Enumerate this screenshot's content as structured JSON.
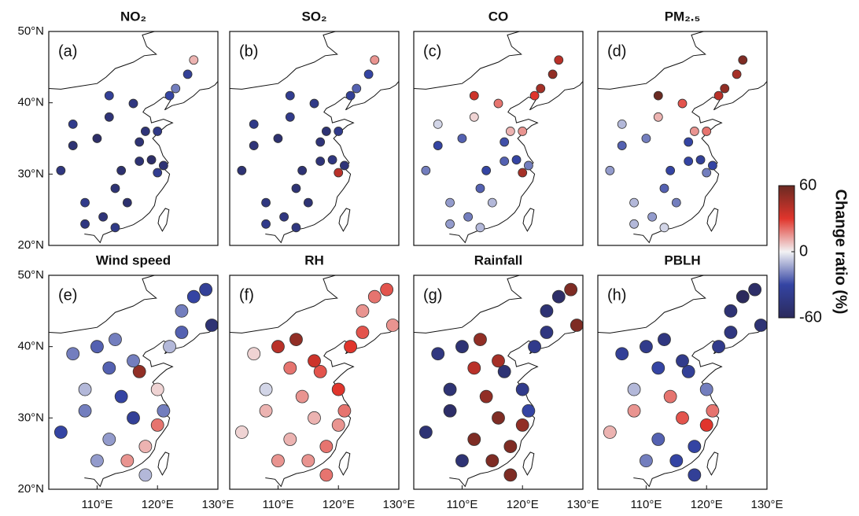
{
  "chart_data": [
    {
      "type": "map-scatter",
      "title": "NO₂",
      "panel": "(a)",
      "xlim": [
        102,
        130
      ],
      "ylim": [
        20,
        50
      ],
      "yticks": [
        {
          "value": 20,
          "label": "20°N"
        },
        {
          "value": 30,
          "label": "30°N"
        },
        {
          "value": 40,
          "label": "40°N"
        },
        {
          "value": 50,
          "label": "50°N"
        }
      ],
      "x": [
        104,
        106,
        108,
        110,
        112,
        113,
        114,
        116,
        117,
        118,
        119,
        120,
        121,
        122,
        123,
        125,
        126,
        113,
        108,
        111,
        115,
        117,
        120,
        106,
        112
      ],
      "y": [
        30.5,
        34,
        26,
        35,
        38,
        22.5,
        30.5,
        39.9,
        31.8,
        36,
        32,
        30.2,
        31.2,
        41,
        42,
        44,
        46,
        28,
        23,
        24,
        26,
        34.5,
        36,
        37,
        41
      ],
      "values": [
        -45,
        -50,
        -40,
        -55,
        -48,
        -42,
        -52,
        -45,
        -50,
        -48,
        -55,
        -38,
        -50,
        -30,
        -20,
        -35,
        10,
        -50,
        -45,
        -48,
        -52,
        -50,
        -42,
        -40,
        -35
      ]
    },
    {
      "type": "map-scatter",
      "title": "SO₂",
      "panel": "(b)",
      "xlim": [
        102,
        130
      ],
      "ylim": [
        20,
        50
      ],
      "x": [
        104,
        106,
        108,
        110,
        112,
        113,
        114,
        116,
        117,
        118,
        119,
        120,
        121,
        122,
        123,
        125,
        126,
        113,
        108,
        111,
        115,
        117,
        120,
        106,
        112
      ],
      "y": [
        30.5,
        34,
        26,
        35,
        38,
        22.5,
        30.5,
        39.9,
        31.8,
        36,
        32,
        30.2,
        31.2,
        41,
        42,
        44,
        46,
        28,
        23,
        24,
        26,
        34.5,
        36,
        37,
        41
      ],
      "values": [
        -50,
        -48,
        -45,
        -52,
        -40,
        -45,
        -50,
        -42,
        -48,
        -50,
        -45,
        40,
        -48,
        -35,
        -25,
        -30,
        15,
        -50,
        -40,
        -45,
        -50,
        -48,
        -40,
        -42,
        -38
      ]
    },
    {
      "type": "map-scatter",
      "title": "CO",
      "panel": "(c)",
      "xlim": [
        102,
        130
      ],
      "ylim": [
        20,
        50
      ],
      "x": [
        104,
        106,
        108,
        110,
        112,
        113,
        114,
        116,
        117,
        118,
        119,
        120,
        121,
        122,
        123,
        125,
        126,
        113,
        108,
        111,
        115,
        117,
        120,
        106,
        112
      ],
      "y": [
        30.5,
        34,
        26,
        35,
        38,
        22.5,
        30.5,
        39.9,
        31.8,
        36,
        32,
        30.2,
        31.2,
        41,
        42,
        44,
        46,
        28,
        23,
        24,
        26,
        34.5,
        36,
        37,
        41
      ],
      "values": [
        -20,
        -30,
        -15,
        -25,
        5,
        -10,
        -30,
        20,
        -25,
        10,
        -30,
        45,
        -20,
        30,
        45,
        50,
        40,
        -25,
        -15,
        -20,
        -10,
        -28,
        15,
        -5,
        35
      ]
    },
    {
      "type": "map-scatter",
      "title": "PM₂.₅",
      "panel": "(d)",
      "xlim": [
        102,
        130
      ],
      "ylim": [
        20,
        50
      ],
      "x": [
        104,
        106,
        108,
        110,
        112,
        113,
        114,
        116,
        117,
        118,
        119,
        120,
        121,
        122,
        123,
        125,
        126,
        113,
        108,
        111,
        115,
        117,
        120,
        106,
        112
      ],
      "y": [
        30.5,
        34,
        26,
        35,
        38,
        22.5,
        30.5,
        39.9,
        31.8,
        36,
        32,
        30.2,
        31.2,
        41,
        42,
        44,
        46,
        28,
        23,
        24,
        26,
        34.5,
        36,
        37,
        41
      ],
      "values": [
        -15,
        -25,
        -10,
        -20,
        10,
        -5,
        -30,
        25,
        -30,
        15,
        -35,
        -20,
        -30,
        40,
        50,
        45,
        55,
        -25,
        -10,
        -15,
        -20,
        -30,
        20,
        -10,
        60
      ]
    },
    {
      "type": "map-scatter",
      "title": "Wind speed",
      "panel": "(e)",
      "xlim": [
        102,
        130
      ],
      "ylim": [
        20,
        50
      ],
      "yticks": [
        {
          "value": 20,
          "label": "20°N"
        },
        {
          "value": 30,
          "label": "30°N"
        },
        {
          "value": 40,
          "label": "40°N"
        },
        {
          "value": 50,
          "label": "50°N"
        }
      ],
      "xticks": [
        {
          "value": 110,
          "label": "110°E"
        },
        {
          "value": 120,
          "label": "120°E"
        },
        {
          "value": 130,
          "label": "130°E"
        }
      ],
      "x": [
        104,
        108,
        110,
        112,
        114,
        116,
        117,
        118,
        120,
        121,
        122,
        124,
        126,
        128,
        129,
        106,
        110,
        113,
        115,
        118,
        120,
        112,
        116,
        108,
        124
      ],
      "y": [
        28,
        31,
        24,
        37,
        33,
        30,
        36.5,
        26,
        29,
        31,
        40,
        42,
        47,
        48,
        43,
        39,
        40,
        41,
        24,
        22,
        34,
        27,
        38,
        34,
        45
      ],
      "values": [
        -30,
        -20,
        -15,
        -25,
        -30,
        -35,
        50,
        10,
        20,
        -20,
        -10,
        -25,
        -30,
        -35,
        -50,
        -20,
        -25,
        -20,
        15,
        -10,
        5,
        -15,
        -20,
        -10,
        -20
      ]
    },
    {
      "type": "map-scatter",
      "title": "RH",
      "panel": "(f)",
      "xlim": [
        102,
        130
      ],
      "ylim": [
        20,
        50
      ],
      "xticks": [
        {
          "value": 110,
          "label": "110°E"
        },
        {
          "value": 120,
          "label": "120°E"
        },
        {
          "value": 130,
          "label": "130°E"
        }
      ],
      "x": [
        104,
        108,
        110,
        112,
        114,
        116,
        117,
        118,
        120,
        121,
        122,
        124,
        126,
        128,
        129,
        106,
        110,
        113,
        115,
        118,
        120,
        112,
        116,
        108,
        124
      ],
      "y": [
        28,
        31,
        24,
        37,
        33,
        30,
        36.5,
        26,
        29,
        31,
        40,
        42,
        47,
        48,
        43,
        39,
        40,
        41,
        24,
        22,
        34,
        27,
        38,
        34,
        45
      ],
      "values": [
        5,
        10,
        15,
        20,
        15,
        10,
        25,
        20,
        15,
        20,
        30,
        25,
        20,
        25,
        15,
        5,
        40,
        50,
        15,
        20,
        30,
        10,
        35,
        -5,
        15
      ]
    },
    {
      "type": "map-scatter",
      "title": "Rainfall",
      "panel": "(g)",
      "xlim": [
        102,
        130
      ],
      "ylim": [
        20,
        50
      ],
      "xticks": [
        {
          "value": 110,
          "label": "110°E"
        },
        {
          "value": 120,
          "label": "120°E"
        },
        {
          "value": 130,
          "label": "130°E"
        }
      ],
      "x": [
        104,
        108,
        110,
        112,
        114,
        116,
        117,
        118,
        120,
        121,
        122,
        124,
        126,
        128,
        129,
        106,
        110,
        113,
        115,
        118,
        120,
        112,
        116,
        108,
        124
      ],
      "y": [
        28,
        31,
        24,
        37,
        33,
        30,
        36.5,
        26,
        29,
        31,
        40,
        42,
        47,
        48,
        43,
        39,
        40,
        41,
        24,
        22,
        34,
        27,
        38,
        34,
        45
      ],
      "values": [
        -50,
        -55,
        -50,
        40,
        50,
        55,
        -50,
        55,
        50,
        -30,
        -40,
        -45,
        -55,
        55,
        55,
        -45,
        -50,
        50,
        55,
        55,
        -40,
        55,
        45,
        -50,
        -50
      ]
    },
    {
      "type": "map-scatter",
      "title": "PBLH",
      "panel": "(h)",
      "xlim": [
        102,
        130
      ],
      "ylim": [
        20,
        50
      ],
      "xticks": [
        {
          "value": 110,
          "label": "110°E"
        },
        {
          "value": 120,
          "label": "120°E"
        },
        {
          "value": 130,
          "label": "130°E"
        }
      ],
      "x": [
        104,
        108,
        110,
        112,
        114,
        116,
        117,
        118,
        120,
        121,
        122,
        124,
        126,
        128,
        129,
        106,
        110,
        113,
        115,
        118,
        120,
        112,
        116,
        108,
        124
      ],
      "y": [
        28,
        31,
        24,
        37,
        33,
        30,
        36.5,
        26,
        29,
        31,
        40,
        42,
        47,
        48,
        43,
        39,
        40,
        41,
        24,
        22,
        34,
        27,
        38,
        34,
        45
      ],
      "values": [
        10,
        15,
        -20,
        -30,
        20,
        25,
        -35,
        -30,
        30,
        20,
        -40,
        -45,
        -60,
        -55,
        -50,
        -35,
        -40,
        -45,
        -30,
        -35,
        -20,
        -25,
        -40,
        -10,
        -50
      ]
    }
  ],
  "colorbar": {
    "label": "Change ratio (%)",
    "lim": [
      -60,
      60
    ],
    "ticks": [
      -60,
      0,
      60
    ],
    "colors": [
      "#2b2a5c",
      "#3444a3",
      "#f2f2f4",
      "#e0352c",
      "#6a2a22"
    ]
  }
}
